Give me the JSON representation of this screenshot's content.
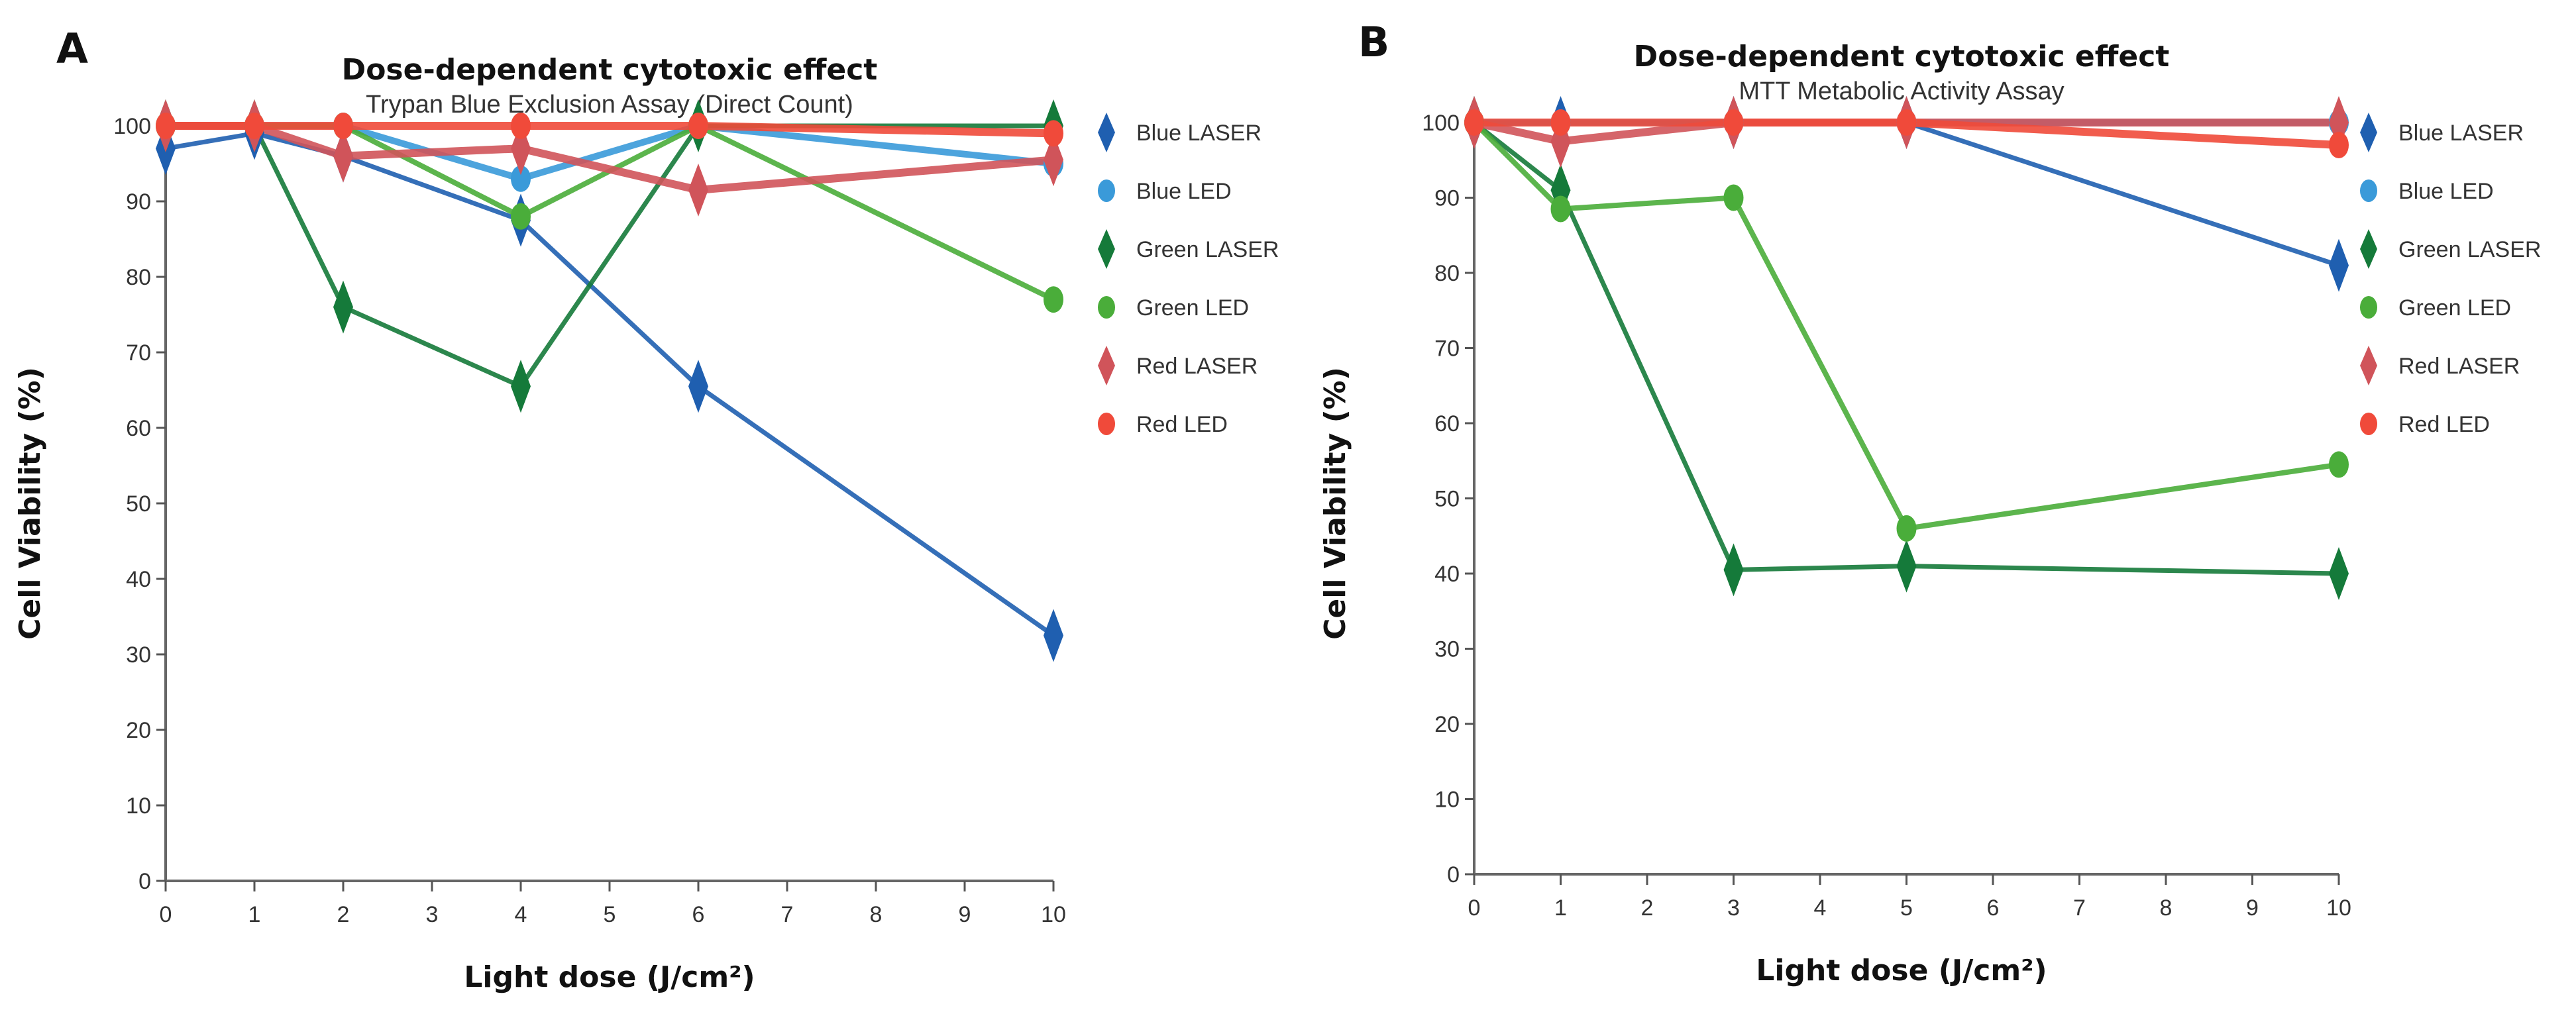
{
  "chart_data": [
    {
      "panel": "A",
      "type": "line",
      "title": "Dose-dependent cytotoxic effect",
      "subtitle": "Trypan Blue Exclusion Assay (Direct Count)",
      "xlabel": "Light dose (J/cm²)",
      "ylabel": "Cell Viability (%)",
      "xlim": [
        0,
        10
      ],
      "ylim": [
        0,
        100
      ],
      "xticks": [
        0,
        1,
        2,
        3,
        4,
        5,
        6,
        7,
        8,
        9,
        10
      ],
      "yticks": [
        0,
        10,
        20,
        30,
        40,
        50,
        60,
        70,
        80,
        90,
        100
      ],
      "grid": false,
      "legend_position": "right",
      "x": [
        0,
        1,
        2,
        4,
        6,
        10
      ],
      "series": [
        {
          "name": "Blue LASER",
          "marker": "diamond",
          "color": "#1f5fb0",
          "values": [
            97,
            99,
            96,
            87.5,
            65.5,
            32.5
          ]
        },
        {
          "name": "Blue LED",
          "marker": "circle",
          "color": "#3a9ad9",
          "values": [
            100,
            100,
            100,
            93,
            100,
            95
          ]
        },
        {
          "name": "Green LASER",
          "marker": "diamond",
          "color": "#157a3a",
          "values": [
            100,
            100,
            76,
            65.5,
            100,
            100
          ]
        },
        {
          "name": "Green LED",
          "marker": "circle",
          "color": "#4aad3a",
          "values": [
            100,
            100,
            100,
            88,
            100,
            77
          ]
        },
        {
          "name": "Red LASER",
          "marker": "diamond",
          "color": "#d0545a",
          "values": [
            100,
            100,
            96,
            97,
            91.5,
            95.5
          ]
        },
        {
          "name": "Red LED",
          "marker": "circle",
          "color": "#f04a3a",
          "values": [
            100,
            100,
            100,
            100,
            100,
            99
          ]
        }
      ]
    },
    {
      "panel": "B",
      "type": "line",
      "title": "Dose-dependent cytotoxic effect",
      "subtitle": "MTT Metabolic Activity Assay",
      "xlabel": "Light dose (J/cm²)",
      "ylabel": "Cell Viability (%)",
      "xlim": [
        0,
        10
      ],
      "ylim": [
        0,
        100
      ],
      "xticks": [
        0,
        1,
        2,
        3,
        4,
        5,
        6,
        7,
        8,
        9,
        10
      ],
      "yticks": [
        0,
        10,
        20,
        30,
        40,
        50,
        60,
        70,
        80,
        90,
        100
      ],
      "grid": false,
      "legend_position": "right",
      "x": [
        0,
        1,
        3,
        5,
        10
      ],
      "series": [
        {
          "name": "Blue LASER",
          "marker": "diamond",
          "color": "#1f5fb0",
          "values": [
            100,
            100,
            100,
            100,
            81
          ]
        },
        {
          "name": "Blue LED",
          "marker": "circle",
          "color": "#3a9ad9",
          "values": [
            100,
            100,
            100,
            100,
            100
          ]
        },
        {
          "name": "Green LASER",
          "marker": "diamond",
          "color": "#157a3a",
          "values": [
            100,
            91,
            40.5,
            41,
            40
          ]
        },
        {
          "name": "Green LED",
          "marker": "circle",
          "color": "#4aad3a",
          "values": [
            100,
            88.5,
            90,
            46,
            54.5
          ]
        },
        {
          "name": "Red LASER",
          "marker": "diamond",
          "color": "#d0545a",
          "values": [
            100,
            97.5,
            100,
            100,
            100
          ]
        },
        {
          "name": "Red LED",
          "marker": "circle",
          "color": "#f04a3a",
          "values": [
            100,
            100,
            100,
            100,
            97
          ]
        }
      ]
    }
  ]
}
